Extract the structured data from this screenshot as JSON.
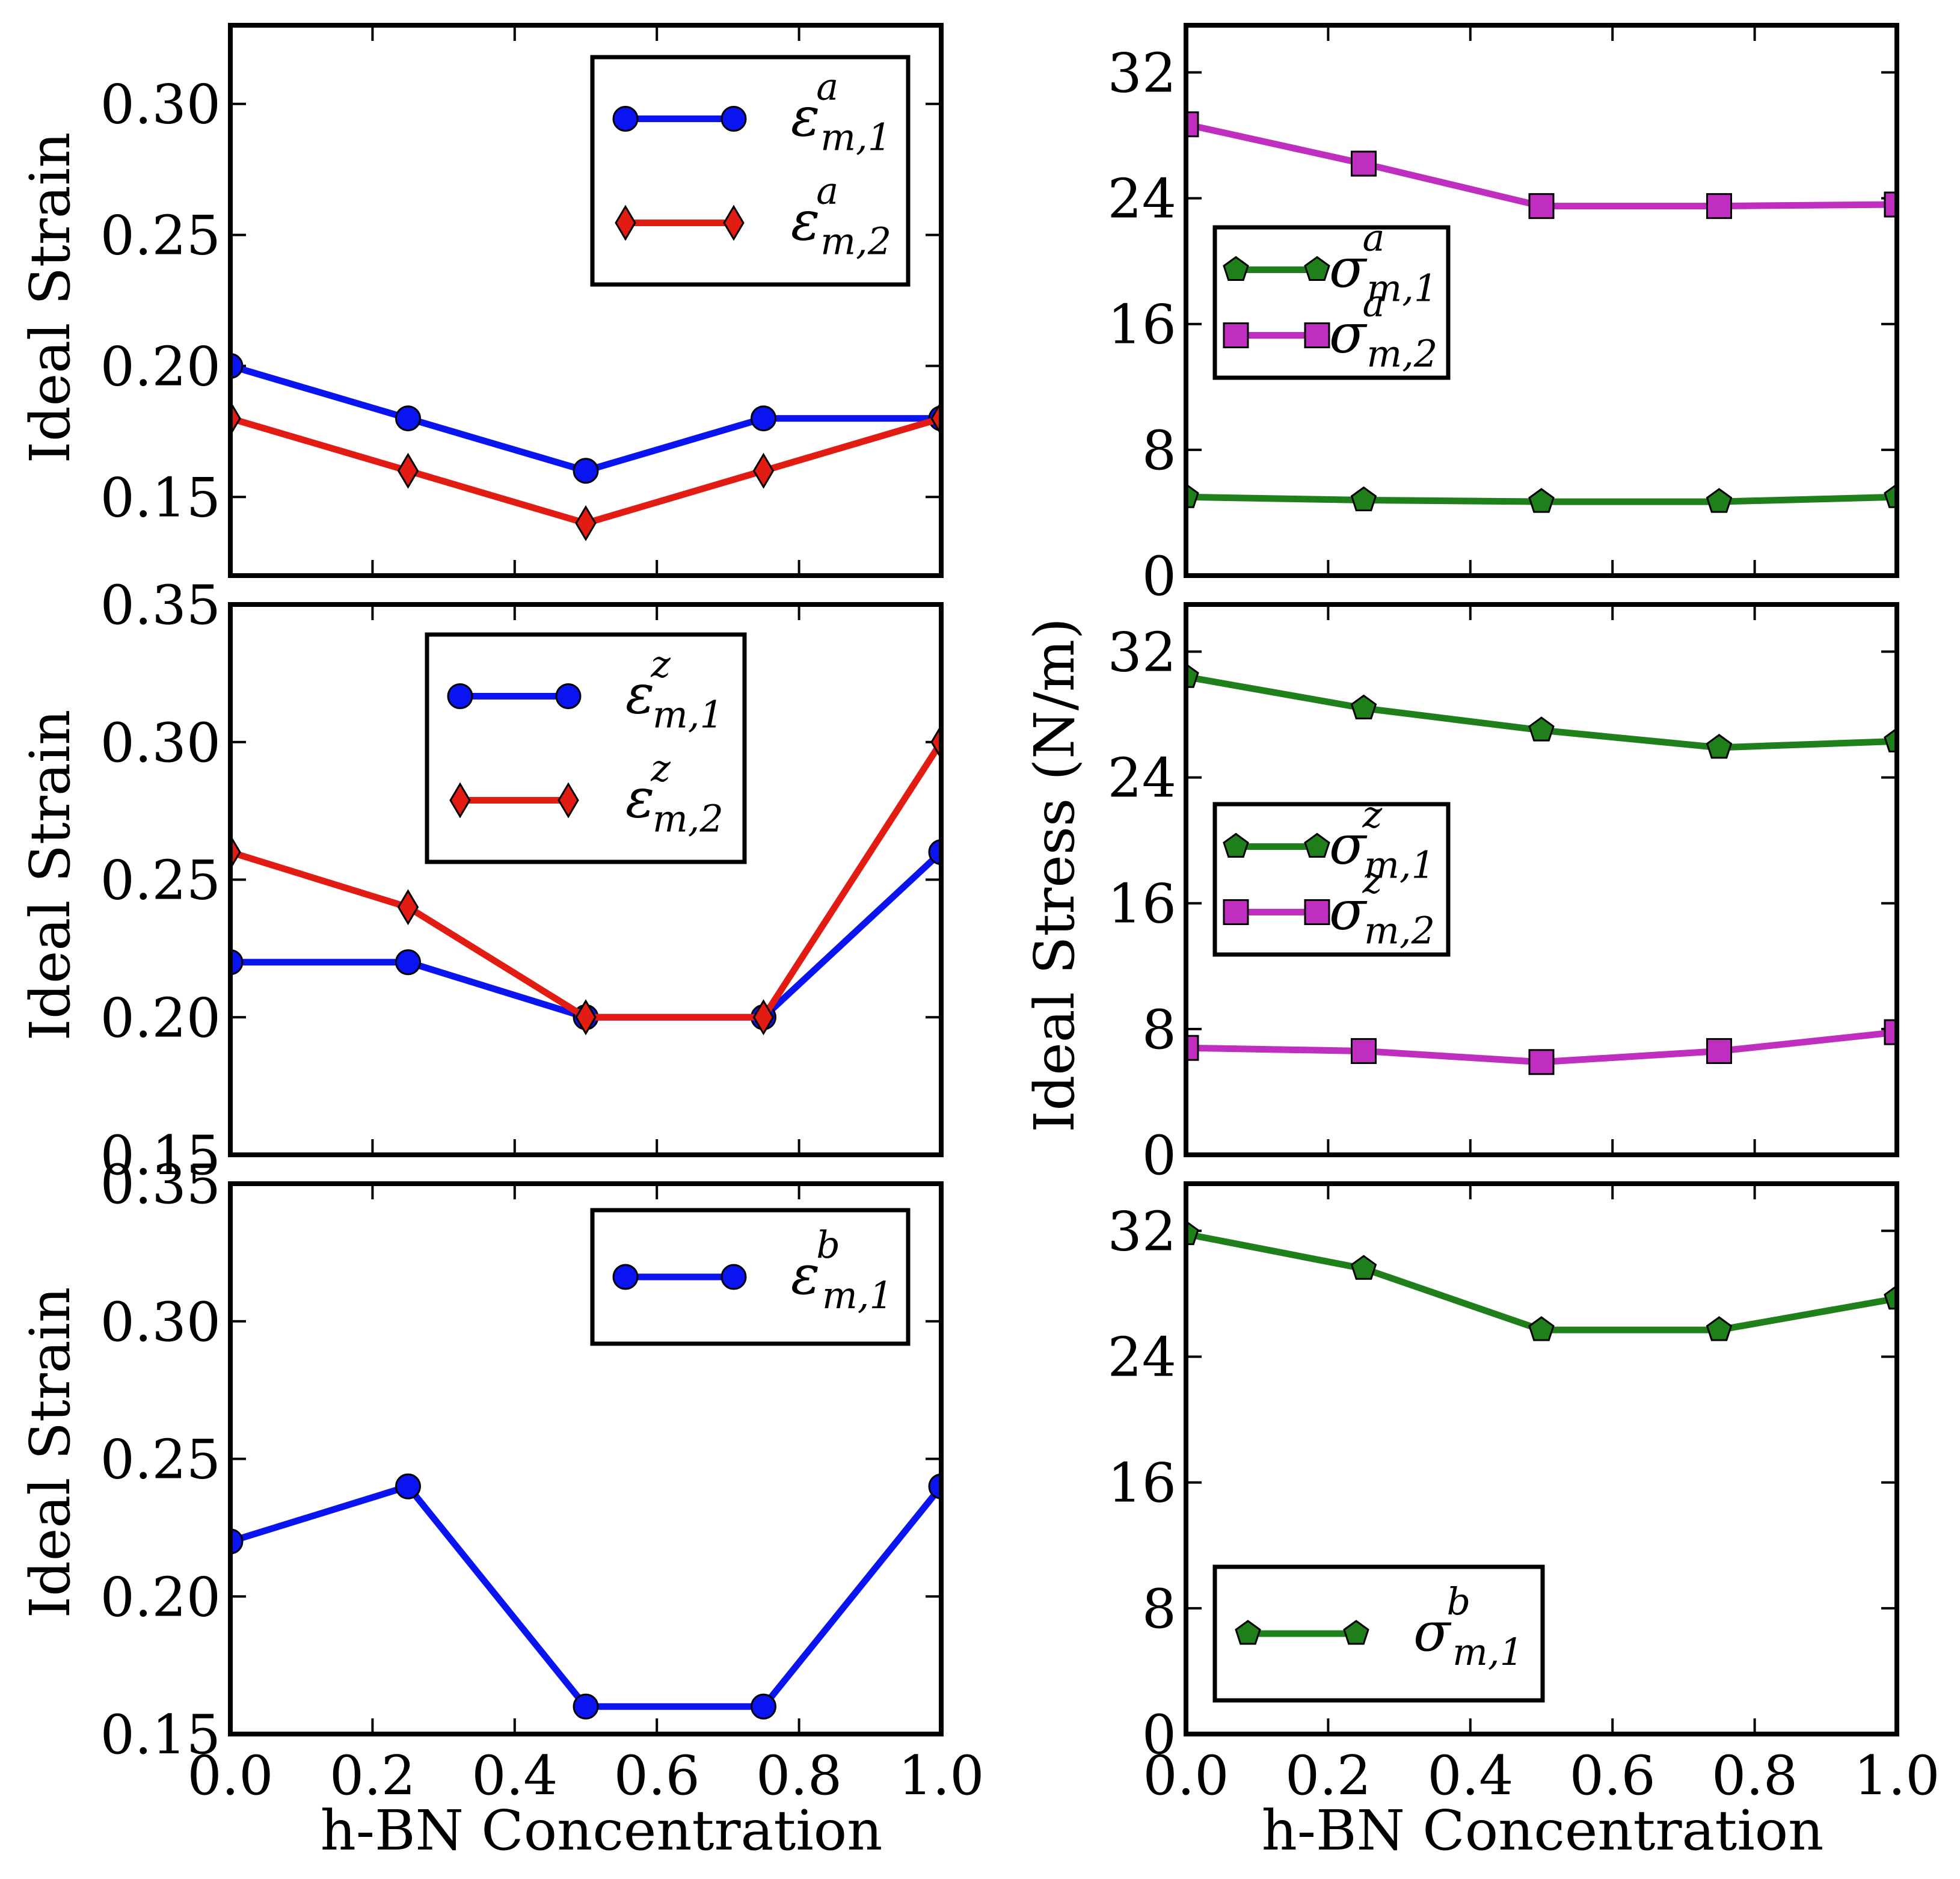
{
  "colors": {
    "blue": "#0a14f0",
    "red": "#e21b13",
    "green": "#1f7f1a",
    "magenta": "#bf2ebf",
    "frame": "#000000"
  },
  "labels": {
    "x_title": "h-BN Concentration",
    "y_title_left": "Ideal Strain",
    "y_title_right": "Ideal Stress (N/m)"
  },
  "chart_data": [
    {
      "id": "strain-a",
      "type": "line",
      "xlabel": "",
      "ylabel": "Ideal Strain",
      "xlim": [
        0.0,
        1.0
      ],
      "ylim": [
        0.12,
        0.33
      ],
      "x_ticks": [
        "0.0",
        "0.2",
        "0.4",
        "0.6",
        "0.8",
        "1.0"
      ],
      "x_tick_values": [
        0.0,
        0.2,
        0.4,
        0.6,
        0.8,
        1.0
      ],
      "show_x_tick_labels": false,
      "y_ticks": [
        "0.15",
        "0.20",
        "0.25",
        "0.30"
      ],
      "y_tick_values": [
        0.15,
        0.2,
        0.25,
        0.3
      ],
      "legend_position": "top-right",
      "series": [
        {
          "name": "ε_m,1^a",
          "symbol": "ε",
          "sub": "m,1",
          "sup": "a",
          "color": "blue",
          "marker": "circle",
          "x": [
            0.0,
            0.25,
            0.5,
            0.75,
            1.0
          ],
          "values": [
            0.2,
            0.18,
            0.16,
            0.18,
            0.18
          ]
        },
        {
          "name": "ε_m,2^a",
          "symbol": "ε",
          "sub": "m,2",
          "sup": "a",
          "color": "red",
          "marker": "diamond",
          "x": [
            0.0,
            0.25,
            0.5,
            0.75,
            1.0
          ],
          "values": [
            0.18,
            0.16,
            0.14,
            0.16,
            0.18
          ]
        }
      ]
    },
    {
      "id": "strain-z",
      "type": "line",
      "xlabel": "",
      "ylabel": "Ideal Strain",
      "xlim": [
        0.0,
        1.0
      ],
      "ylim": [
        0.15,
        0.35
      ],
      "x_ticks": [
        "0.0",
        "0.2",
        "0.4",
        "0.6",
        "0.8",
        "1.0"
      ],
      "x_tick_values": [
        0.0,
        0.2,
        0.4,
        0.6,
        0.8,
        1.0
      ],
      "show_x_tick_labels": false,
      "y_ticks": [
        "0.15",
        "0.20",
        "0.25",
        "0.30",
        "0.35"
      ],
      "y_tick_values": [
        0.15,
        0.2,
        0.25,
        0.3,
        0.35
      ],
      "legend_position": "top-center",
      "series": [
        {
          "name": "ε_m,1^z",
          "symbol": "ε",
          "sub": "m,1",
          "sup": "z",
          "color": "blue",
          "marker": "circle",
          "x": [
            0.0,
            0.25,
            0.5,
            0.75,
            1.0
          ],
          "values": [
            0.22,
            0.22,
            0.2,
            0.2,
            0.26
          ]
        },
        {
          "name": "ε_m,2^z",
          "symbol": "ε",
          "sub": "m,2",
          "sup": "z",
          "color": "red",
          "marker": "diamond",
          "x": [
            0.0,
            0.25,
            0.5,
            0.75,
            1.0
          ],
          "values": [
            0.26,
            0.24,
            0.2,
            0.2,
            0.3
          ]
        }
      ]
    },
    {
      "id": "strain-b",
      "type": "line",
      "xlabel": "h-BN Concentration",
      "ylabel": "Ideal Strain",
      "xlim": [
        0.0,
        1.0
      ],
      "ylim": [
        0.15,
        0.35
      ],
      "x_ticks": [
        "0.0",
        "0.2",
        "0.4",
        "0.6",
        "0.8",
        "1.0"
      ],
      "x_tick_values": [
        0.0,
        0.2,
        0.4,
        0.6,
        0.8,
        1.0
      ],
      "show_x_tick_labels": true,
      "y_ticks": [
        "0.15",
        "0.20",
        "0.25",
        "0.30",
        "0.35"
      ],
      "y_tick_values": [
        0.15,
        0.2,
        0.25,
        0.3,
        0.35
      ],
      "legend_position": "top-right",
      "series": [
        {
          "name": "ε_m,1^b",
          "symbol": "ε",
          "sub": "m,1",
          "sup": "b",
          "color": "blue",
          "marker": "circle",
          "x": [
            0.0,
            0.25,
            0.5,
            0.75,
            1.0
          ],
          "values": [
            0.22,
            0.24,
            0.16,
            0.16,
            0.24
          ]
        }
      ]
    },
    {
      "id": "stress-a",
      "type": "line",
      "xlabel": "",
      "ylabel": "",
      "xlim": [
        0.0,
        1.0
      ],
      "ylim": [
        0,
        35
      ],
      "x_ticks": [
        "0.0",
        "0.2",
        "0.4",
        "0.6",
        "0.8",
        "1.0"
      ],
      "x_tick_values": [
        0.0,
        0.2,
        0.4,
        0.6,
        0.8,
        1.0
      ],
      "show_x_tick_labels": false,
      "y_ticks": [
        "0",
        "8",
        "16",
        "24",
        "32"
      ],
      "y_tick_values": [
        0,
        8,
        16,
        24,
        32
      ],
      "legend_position": "center-left",
      "series": [
        {
          "name": "σ_m,1^a",
          "symbol": "σ",
          "sub": "m,1",
          "sup": "a",
          "color": "green",
          "marker": "pentagon",
          "x": [
            0.0,
            0.25,
            0.5,
            0.75,
            1.0
          ],
          "values": [
            5.0,
            4.8,
            4.7,
            4.7,
            5.0
          ]
        },
        {
          "name": "σ_m,2^a",
          "symbol": "σ",
          "sub": "m,2",
          "sup": "a",
          "color": "magenta",
          "marker": "square",
          "x": [
            0.0,
            0.25,
            0.5,
            0.75,
            1.0
          ],
          "values": [
            28.7,
            26.2,
            23.5,
            23.5,
            23.6
          ]
        }
      ]
    },
    {
      "id": "stress-z",
      "type": "line",
      "xlabel": "",
      "ylabel": "Ideal Stress (N/m)",
      "xlim": [
        0.0,
        1.0
      ],
      "ylim": [
        0,
        35
      ],
      "x_ticks": [
        "0.0",
        "0.2",
        "0.4",
        "0.6",
        "0.8",
        "1.0"
      ],
      "x_tick_values": [
        0.0,
        0.2,
        0.4,
        0.6,
        0.8,
        1.0
      ],
      "show_x_tick_labels": false,
      "y_ticks": [
        "0",
        "8",
        "16",
        "24",
        "32"
      ],
      "y_tick_values": [
        0,
        8,
        16,
        24,
        32
      ],
      "legend_position": "center-left",
      "series": [
        {
          "name": "σ_m,1^z",
          "symbol": "σ",
          "sub": "m,1",
          "sup": "z",
          "color": "green",
          "marker": "pentagon",
          "x": [
            0.0,
            0.25,
            0.5,
            0.75,
            1.0
          ],
          "values": [
            30.4,
            28.4,
            27.0,
            25.9,
            26.3
          ]
        },
        {
          "name": "σ_m,2^z",
          "symbol": "σ",
          "sub": "m,2",
          "sup": "z",
          "color": "magenta",
          "marker": "square",
          "x": [
            0.0,
            0.25,
            0.5,
            0.75,
            1.0
          ],
          "values": [
            6.8,
            6.6,
            5.9,
            6.6,
            7.8
          ]
        }
      ]
    },
    {
      "id": "stress-b",
      "type": "line",
      "xlabel": "h-BN Concentration",
      "ylabel": "",
      "xlim": [
        0.0,
        1.0
      ],
      "ylim": [
        0,
        35
      ],
      "x_ticks": [
        "0.0",
        "0.2",
        "0.4",
        "0.6",
        "0.8",
        "1.0"
      ],
      "x_tick_values": [
        0.0,
        0.2,
        0.4,
        0.6,
        0.8,
        1.0
      ],
      "show_x_tick_labels": true,
      "y_ticks": [
        "0",
        "8",
        "16",
        "24",
        "32"
      ],
      "y_tick_values": [
        0,
        8,
        16,
        24,
        32
      ],
      "legend_position": "lower-left",
      "series": [
        {
          "name": "σ_m,1^b",
          "symbol": "σ",
          "sub": "m,1",
          "sup": "b",
          "color": "green",
          "marker": "pentagon",
          "x": [
            0.0,
            0.25,
            0.5,
            0.75,
            1.0
          ],
          "values": [
            31.8,
            29.6,
            25.7,
            25.7,
            27.7
          ]
        }
      ]
    }
  ]
}
